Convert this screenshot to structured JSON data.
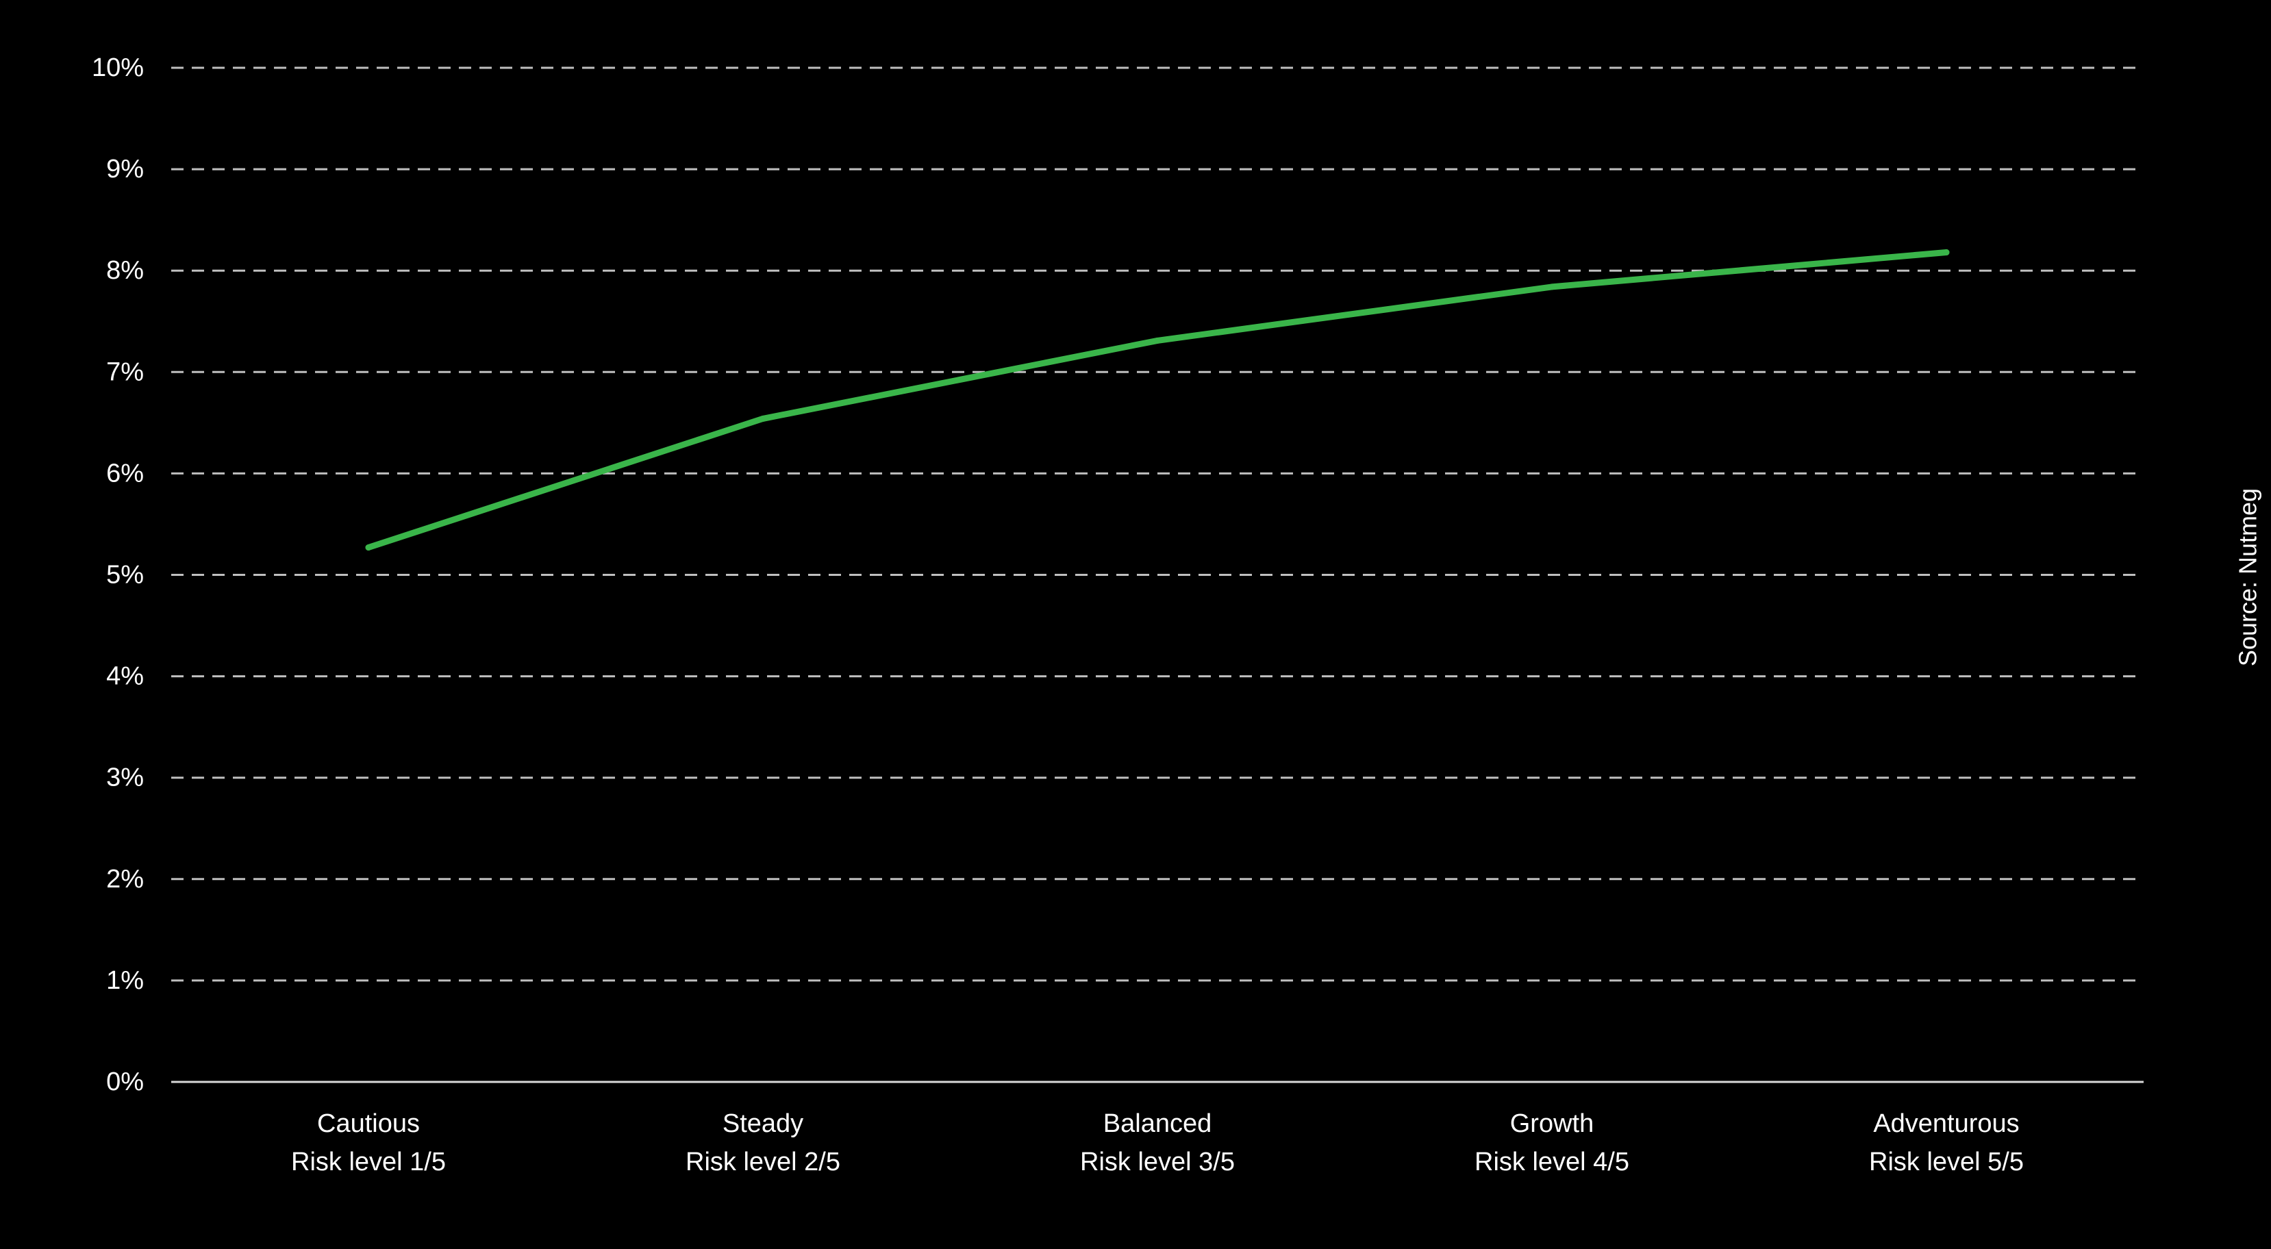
{
  "chart_data": {
    "type": "line",
    "title": "",
    "xlabel": "",
    "ylabel": "",
    "categories": [
      [
        "Cautious",
        "Risk level 1/5"
      ],
      [
        "Steady",
        "Risk level 2/5"
      ],
      [
        "Balanced",
        "Risk level 3/5"
      ],
      [
        "Growth",
        "Risk level 4/5"
      ],
      [
        "Adventurous",
        "Risk level 5/5"
      ]
    ],
    "y_ticks": [
      "0%",
      "1%",
      "2%",
      "3%",
      "4%",
      "5%",
      "6%",
      "7%",
      "8%",
      "9%",
      "10%"
    ],
    "ylim": [
      0,
      10
    ],
    "series": [
      {
        "values": [
          5.27,
          6.54,
          7.31,
          7.84,
          8.18
        ]
      }
    ],
    "grid": true,
    "legend": "none",
    "source_note": "Source: Nutmeg",
    "colors": {
      "background": "#000000",
      "line": "#3ab54a",
      "grid": "#bfbfbf",
      "axis": "#d9d9d9",
      "text": "#ffffff"
    }
  }
}
